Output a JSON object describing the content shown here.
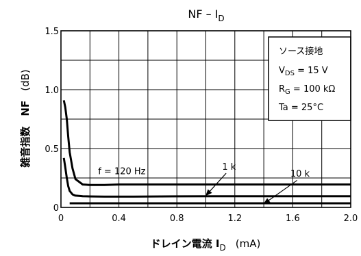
{
  "chart_data": {
    "type": "line",
    "title_main": "NF – I",
    "title_sub": "D",
    "xlabel_main": "ドレイン電流   I",
    "xlabel_sub": "D",
    "xlabel_unit": "(mA)",
    "ylabel_main": "雑音指数　NF",
    "ylabel_unit": "(dB)",
    "xlim": [
      0,
      2.0
    ],
    "ylim": [
      0,
      1.5
    ],
    "x_ticks": [
      {
        "v": 0,
        "label": "0"
      },
      {
        "v": 0.4,
        "label": "0.4"
      },
      {
        "v": 0.8,
        "label": "0.8"
      },
      {
        "v": 1.2,
        "label": "1.2"
      },
      {
        "v": 1.6,
        "label": "1.6"
      },
      {
        "v": 2.0,
        "label": "2.0"
      }
    ],
    "y_ticks": [
      {
        "v": 0,
        "label": "0"
      },
      {
        "v": 0.5,
        "label": "0.5"
      },
      {
        "v": 1.0,
        "label": "1.0"
      },
      {
        "v": 1.5,
        "label": "1.5"
      }
    ],
    "x_grid": [
      0.2,
      0.4,
      0.6,
      0.8,
      1.0,
      1.2,
      1.4,
      1.6,
      1.8
    ],
    "y_grid": [
      0.25,
      0.5,
      0.75,
      1.0,
      1.25
    ],
    "grid": true,
    "conditions": {
      "line1": "ソース接地",
      "line2_pre": "V",
      "line2_sub": "DS",
      "line2_post": " = 15 V",
      "line3_pre": "R",
      "line3_sub": "G",
      "line3_post": " = 100 kΩ",
      "line4": "Ta = 25°C"
    },
    "series": [
      {
        "name": "f = 120 Hz",
        "x": [
          0.02,
          0.03,
          0.04,
          0.05,
          0.06,
          0.08,
          0.1,
          0.15,
          0.2,
          0.3,
          0.4,
          0.6,
          1.0,
          1.5,
          2.0
        ],
        "y": [
          0.91,
          0.85,
          0.75,
          0.6,
          0.47,
          0.33,
          0.24,
          0.195,
          0.19,
          0.19,
          0.195,
          0.195,
          0.195,
          0.195,
          0.195
        ]
      },
      {
        "name": "1 k",
        "x": [
          0.02,
          0.03,
          0.04,
          0.05,
          0.06,
          0.08,
          0.1,
          0.15,
          0.2,
          0.3,
          0.5,
          1.0,
          1.5,
          2.0
        ],
        "y": [
          0.42,
          0.34,
          0.25,
          0.18,
          0.14,
          0.11,
          0.1,
          0.095,
          0.093,
          0.092,
          0.092,
          0.095,
          0.095,
          0.095
        ]
      },
      {
        "name": "10 k",
        "x": [
          0.06,
          2.0
        ],
        "y": [
          0.035,
          0.035
        ]
      }
    ],
    "annotations": [
      {
        "label": "f = 120 Hz",
        "tx": 0.42,
        "ty": 0.31
      },
      {
        "label": "1 k",
        "tx": 1.16,
        "ty": 0.35,
        "from": [
          1.14,
          0.29
        ],
        "to": [
          1.0,
          0.1
        ]
      },
      {
        "label": "10 k",
        "tx": 1.65,
        "ty": 0.29,
        "from": [
          1.63,
          0.23
        ],
        "to": [
          1.4,
          0.03
        ]
      }
    ]
  }
}
